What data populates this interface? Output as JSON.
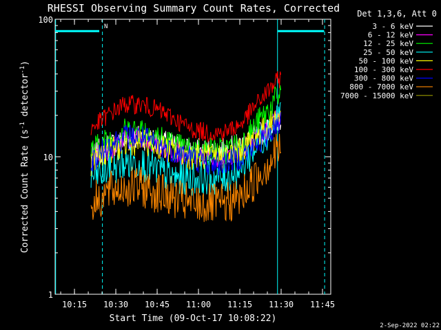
{
  "chart_data": {
    "type": "line",
    "title": "RHESSI Observing Summary Count Rates, Corrected",
    "xlabel": "Start Time (09-Oct-17 10:08:22)",
    "ylabel_main": "Corrected Count Rate (s",
    "ylabel_sup1": "-1",
    "ylabel_mid": " detector",
    "ylabel_sup2": "-1",
    "ylabel_end": ")",
    "y_scale": "log",
    "ylim": [
      1,
      100
    ],
    "xlim_minutes": [
      10.133,
      11.8
    ],
    "y_ticks": [
      {
        "value": 1,
        "label": "1"
      },
      {
        "value": 10,
        "label": "10"
      },
      {
        "value": 100,
        "label": "100"
      }
    ],
    "x_ticks": [
      {
        "time": 10.25,
        "label": "10:15"
      },
      {
        "time": 10.5,
        "label": "10:30"
      },
      {
        "time": 10.75,
        "label": "10:45"
      },
      {
        "time": 11.0,
        "label": "11:00"
      },
      {
        "time": 11.25,
        "label": "11:15"
      },
      {
        "time": 11.5,
        "label": "11:30"
      },
      {
        "time": 11.75,
        "label": "11:45"
      }
    ],
    "legend_title": "Det 1,3,6, Att 0",
    "legend_position": "right",
    "series": [
      {
        "name": "3 - 6 keV",
        "color": "#ffffff",
        "x": [
          10.35,
          10.45,
          10.55,
          10.65,
          10.75,
          10.85,
          10.95,
          11.05,
          11.15,
          11.25,
          11.35,
          11.45,
          11.5
        ],
        "y": [
          10,
          12,
          13,
          14,
          13,
          12,
          11,
          11,
          11,
          12,
          14,
          17,
          19
        ]
      },
      {
        "name": "6 - 12 keV",
        "color": "#ff00ff",
        "x": [
          10.35,
          10.45,
          10.55,
          10.65,
          10.75,
          10.85,
          10.95,
          11.05,
          11.15,
          11.25,
          11.35,
          11.45,
          11.5
        ],
        "y": [
          9,
          11,
          13,
          14,
          12,
          11,
          10,
          10,
          10,
          11,
          14,
          18,
          20
        ]
      },
      {
        "name": "12 - 25 keV",
        "color": "#00ff00",
        "x": [
          10.35,
          10.45,
          10.55,
          10.65,
          10.75,
          10.85,
          10.95,
          11.05,
          11.15,
          11.25,
          11.35,
          11.45,
          11.5
        ],
        "y": [
          11,
          13,
          15,
          16,
          14,
          12,
          11,
          11,
          11,
          12,
          17,
          24,
          30
        ]
      },
      {
        "name": "25 - 50 keV",
        "color": "#00ffff",
        "x": [
          10.35,
          10.45,
          10.55,
          10.65,
          10.75,
          10.85,
          10.95,
          11.05,
          11.15,
          11.25,
          11.35,
          11.45,
          11.5
        ],
        "y": [
          7,
          8,
          9,
          9,
          8,
          7,
          7,
          7,
          7,
          8,
          12,
          17,
          22
        ]
      },
      {
        "name": "50 - 100 keV",
        "color": "#ffff00",
        "x": [
          10.35,
          10.45,
          10.55,
          10.65,
          10.75,
          10.85,
          10.95,
          11.05,
          11.15,
          11.25,
          11.35,
          11.45,
          11.5
        ],
        "y": [
          9,
          11,
          12,
          13,
          12,
          11,
          10,
          10,
          10,
          11,
          14,
          18,
          20
        ]
      },
      {
        "name": "100 - 300 keV",
        "color": "#ff0000",
        "x": [
          10.35,
          10.45,
          10.55,
          10.65,
          10.75,
          10.85,
          10.95,
          11.05,
          11.15,
          11.25,
          11.35,
          11.45,
          11.5
        ],
        "y": [
          16,
          20,
          24,
          24,
          22,
          19,
          16,
          15,
          15,
          17,
          24,
          33,
          38
        ]
      },
      {
        "name": "300 - 800 keV",
        "color": "#0000ff",
        "x": [
          10.35,
          10.45,
          10.55,
          10.65,
          10.75,
          10.85,
          10.95,
          11.05,
          11.15,
          11.25,
          11.35,
          11.45,
          11.5
        ],
        "y": [
          9,
          12,
          14,
          14,
          12,
          11,
          10,
          9,
          9,
          10,
          12,
          16,
          19
        ]
      },
      {
        "name": "800 - 7000 keV",
        "color": "#ff8800",
        "x": [
          10.35,
          10.45,
          10.55,
          10.65,
          10.75,
          10.85,
          10.95,
          11.05,
          11.15,
          11.25,
          11.35,
          11.45,
          11.5
        ],
        "y": [
          4.5,
          5.5,
          6,
          6,
          5.5,
          5,
          4.5,
          4.5,
          4.5,
          5,
          7,
          10,
          12
        ]
      },
      {
        "name": "7000 - 15000 keV",
        "color": "#999900",
        "x": [],
        "y": []
      }
    ],
    "annotations": [
      {
        "type": "vline",
        "time": 10.136,
        "color": "#00ffff",
        "style": "solid"
      },
      {
        "type": "vline",
        "time": 10.419,
        "color": "#00ffff",
        "style": "dashed"
      },
      {
        "type": "vline",
        "time": 11.478,
        "color": "#00ffff",
        "style": "solid"
      },
      {
        "type": "vline",
        "time": 11.763,
        "color": "#00ffff",
        "style": "dashed"
      },
      {
        "type": "hbar",
        "from": 10.133,
        "to": 10.4,
        "value": 82,
        "color": "#00ffff"
      },
      {
        "type": "hbar",
        "from": 11.48,
        "to": 11.76,
        "value": 82,
        "color": "#00ffff"
      },
      {
        "type": "label",
        "text": "N",
        "time": 10.44,
        "value": 86,
        "color": "#00ffff"
      }
    ]
  },
  "footer": {
    "date": "2-Sep-2022 02:22"
  }
}
